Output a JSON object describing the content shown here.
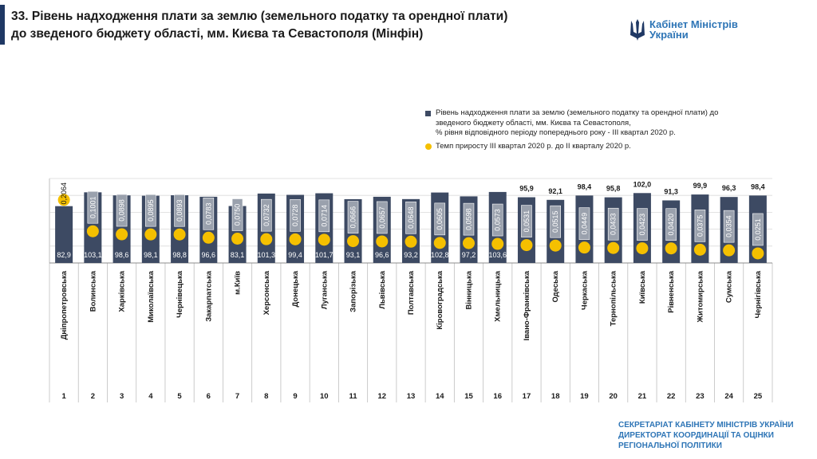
{
  "title": {
    "line1": "33. Рівень надходження плати за землю (земельного податку та орендної плати)",
    "line2": "до зведеного бюджету області, мм. Києва та Севастополя (Мінфін)"
  },
  "logo": {
    "line1": "Кабінет Міністрів",
    "line2": "України"
  },
  "legend": {
    "bar_label_lines": [
      "Рівень надходження плати за землю (земельного податку та орендної плати) до",
      "зведеного бюджету області, мм. Києва та Севастополя,",
      "% рівня відповідного періоду попереднього року  - ІІІ квартал 2020 р."
    ],
    "dot_label": "Темп приросту ІІІ квартал 2020 р. до ІІ кварталу 2020 р."
  },
  "footer": {
    "line1": "СЕКРЕТАРІАТ КАБІНЕТУ МІНІСТРІВ УКРАЇНИ",
    "line2": "ДИРЕКТОРАТ КООРДИНАЦІЇ ТА ОЦІНКИ",
    "line3": "РЕГІОНАЛЬНОЇ ПОЛІТИКИ"
  },
  "colors": {
    "bar": "#3d4a63",
    "dot": "#f5c000",
    "accent": "#2e75b6",
    "label_box": "#9aa1ad"
  },
  "chart_data": {
    "type": "bar",
    "categories": [
      "Дніпропетровська",
      "Волинська",
      "Харківська",
      "Миколаївська",
      "Чернівецька",
      "Закарпатська",
      "м.Київ",
      "Херсонська",
      "Донецька",
      "Луганська",
      "Запорізька",
      "Львівська",
      "Полтавська",
      "Кіровоградська",
      "Вінницька",
      "Хмельницька",
      "Івано-Франківська",
      "Одеська",
      "Черкаська",
      "Тернопільська",
      "Київська",
      "Рівненська",
      "Житомирська",
      "Сумська",
      "Чернігівська"
    ],
    "ranks": [
      "1",
      "2",
      "3",
      "4",
      "5",
      "6",
      "7",
      "8",
      "9",
      "10",
      "11",
      "12",
      "13",
      "14",
      "15",
      "16",
      "17",
      "18",
      "19",
      "20",
      "21",
      "22",
      "23",
      "24",
      "25"
    ],
    "series": [
      {
        "name": "Рівень надходження плати за землю (земельного податку та орендної плати) до зведеного бюджету області, мм. Києва та Севастополя, % рівня відповідного періоду попереднього року  - ІІІ квартал 2020 р.",
        "type": "bar",
        "values": [
          82.9,
          103.1,
          98.6,
          98.1,
          98.8,
          96.6,
          83.1,
          101.3,
          99.4,
          101.7,
          93.1,
          96.6,
          93.2,
          102.8,
          97.2,
          103.6,
          95.9,
          92.1,
          98.4,
          95.8,
          102.0,
          91.3,
          99.9,
          96.3,
          98.4
        ],
        "labels": [
          "82,9",
          "103,1",
          "98,6",
          "98,1",
          "98,8",
          "96,6",
          "83,1",
          "101,3",
          "99,4",
          "101,7",
          "93,1",
          "96,6",
          "93,2",
          "102,8",
          "97,2",
          "103,6",
          "95,9",
          "92,1",
          "98,4",
          "95,8",
          "102,0",
          "91,3",
          "99,9",
          "96,3",
          "98,4"
        ]
      },
      {
        "name": "Темп приросту ІІІ квартал 2020 р. до ІІ кварталу 2020 р.",
        "type": "scatter",
        "values": [
          0.2064,
          0.1001,
          0.0898,
          0.0895,
          0.0893,
          0.0783,
          0.075,
          0.0732,
          0.0728,
          0.0714,
          0.0666,
          0.0657,
          0.0648,
          0.0605,
          0.0598,
          0.0573,
          0.0531,
          0.0515,
          0.0449,
          0.0433,
          0.0423,
          0.042,
          0.0375,
          0.0354,
          0.0251
        ],
        "labels": [
          "0,2064",
          "0,1001",
          "0,0898",
          "0,0895",
          "0,0893",
          "0,0783",
          "0,0750",
          "0,0732",
          "0,0728",
          "0,0714",
          "0,0666",
          "0,0657",
          "0,0648",
          "0,0605",
          "0,0598",
          "0,0573",
          "0,0531",
          "0,0515",
          "0,0449",
          "0,0433",
          "0,0423",
          "0,0420",
          "0,0375",
          "0,0354",
          "0,0251"
        ]
      }
    ],
    "ylim": [
      0,
      110
    ],
    "grid": true,
    "legend_position": "top-right"
  }
}
